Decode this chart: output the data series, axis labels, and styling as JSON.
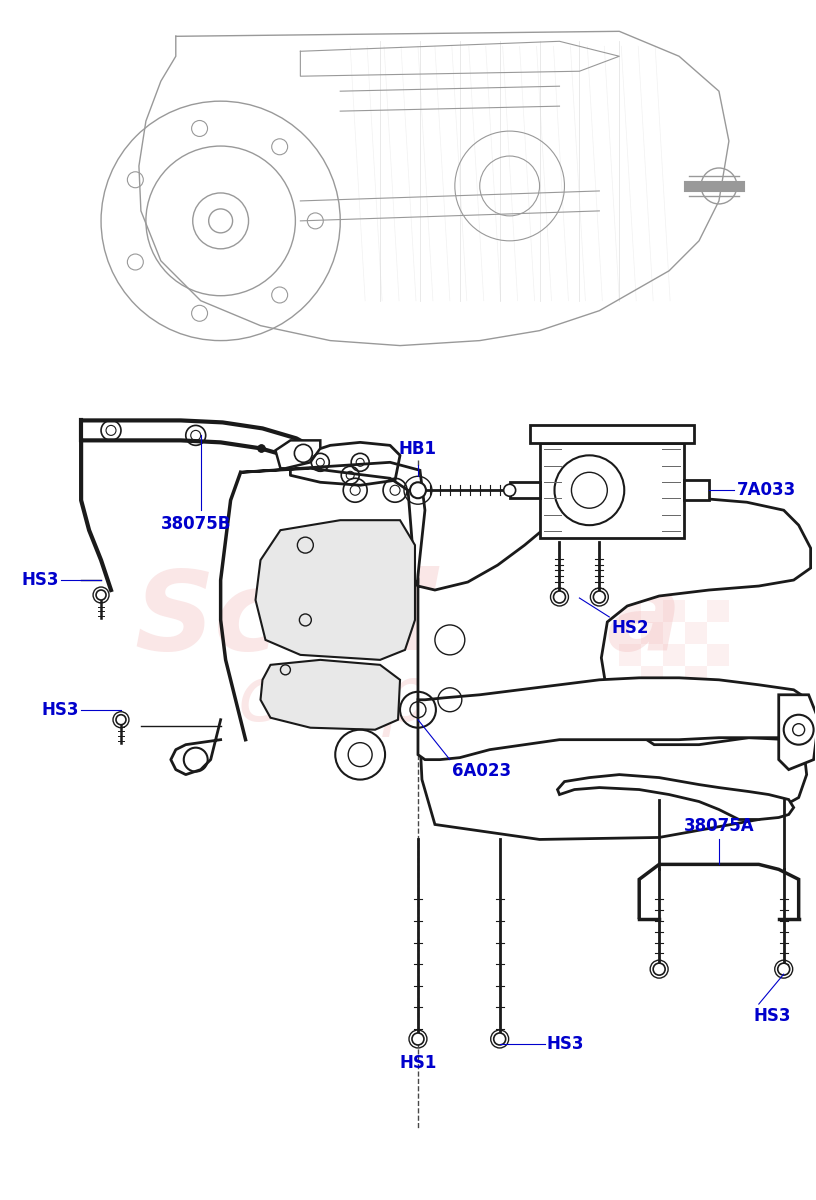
{
  "bg_color": "#ffffff",
  "watermark_line1": "Scuderia",
  "watermark_line2": "car parts",
  "watermark_color": "#f0b0b0",
  "watermark_alpha": 0.3,
  "label_color": "#0000cc",
  "line_color": "#1a1a1a",
  "gray_line": "#aaaaaa",
  "labels": {
    "HS3_left_top": "HS3",
    "38075B": "38075B",
    "HB1": "HB1",
    "7A033": "7A033",
    "HS2": "HS2",
    "HS3_left_bot": "HS3",
    "6A023": "6A023",
    "38075A": "38075A",
    "HS1": "HS1",
    "HS3_bot_mid": "HS3",
    "HS3_bot_right": "HS3"
  },
  "fig_width": 8.16,
  "fig_height": 12.0,
  "dpi": 100
}
